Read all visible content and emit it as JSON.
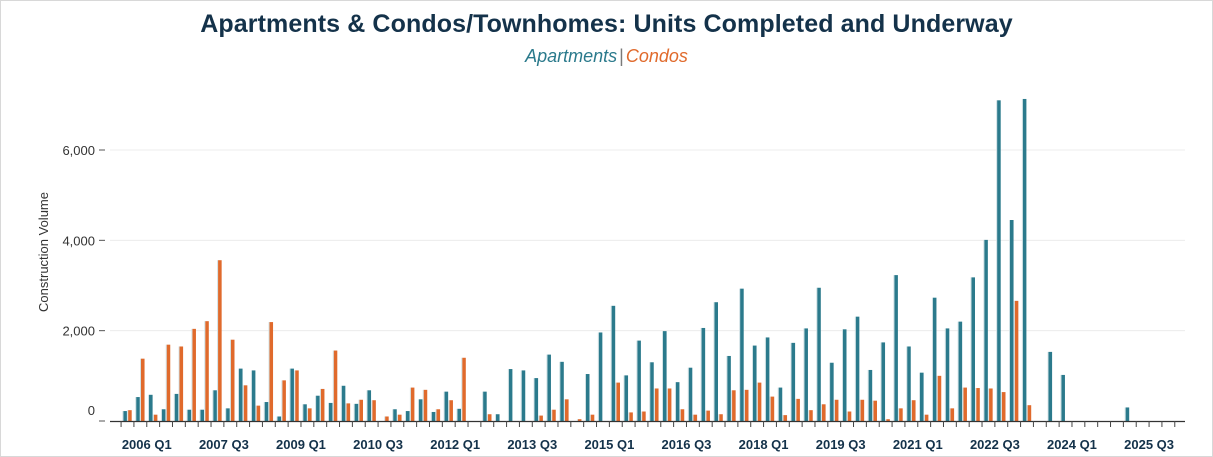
{
  "chart_data": {
    "type": "bar",
    "title": "Apartments & Condos/Townhomes: Units Completed and Underway",
    "ylabel": "Construction Volume",
    "xlabel": "",
    "ylim": [
      0,
      7200
    ],
    "yticks": [
      0,
      2000,
      4000,
      6000
    ],
    "ytick_labels": [
      "0",
      "2,000",
      "4,000",
      "6,000"
    ],
    "grid": true,
    "legend_position": "top-center",
    "colors": {
      "apartments": "#2b7a8c",
      "condos": "#e06a2c"
    },
    "quarter_start": "2006 Q1",
    "x_tick_labels": [
      {
        "label": "2006 Q1",
        "q": 2
      },
      {
        "label": "2007 Q3",
        "q": 8
      },
      {
        "label": "2009 Q1",
        "q": 14
      },
      {
        "label": "2010 Q3",
        "q": 20
      },
      {
        "label": "2012 Q1",
        "q": 26
      },
      {
        "label": "2013 Q3",
        "q": 32
      },
      {
        "label": "2015 Q1",
        "q": 38
      },
      {
        "label": "2016 Q3",
        "q": 44
      },
      {
        "label": "2018 Q1",
        "q": 50
      },
      {
        "label": "2019 Q3",
        "q": 56
      },
      {
        "label": "2021 Q1",
        "q": 62
      },
      {
        "label": "2022 Q3",
        "q": 68
      },
      {
        "label": "2024 Q1",
        "q": 74
      },
      {
        "label": "2025 Q3",
        "q": 80
      }
    ],
    "series": [
      {
        "name": "Apartments",
        "values": [
          220,
          530,
          580,
          260,
          600,
          250,
          250,
          680,
          280,
          1160,
          1120,
          420,
          100,
          1160,
          370,
          560,
          400,
          780,
          380,
          680,
          0,
          260,
          220,
          480,
          200,
          650,
          270,
          0,
          650,
          150,
          1150,
          1120,
          950,
          1470,
          1310,
          0,
          1040,
          1960,
          2550,
          1010,
          1780,
          1300,
          1990,
          860,
          1180,
          2060,
          2630,
          1440,
          2930,
          1670,
          1850,
          740,
          1730,
          2050,
          2950,
          1290,
          2030,
          2310,
          1130,
          1740,
          3230,
          1650,
          1070,
          2730,
          2050,
          2200,
          3180,
          4010,
          7100,
          4450,
          7130,
          0,
          1530,
          1020,
          0,
          0,
          0,
          0,
          300,
          0,
          0,
          0
        ]
      },
      {
        "name": "Condos",
        "values": [
          240,
          1380,
          140,
          1690,
          1650,
          2040,
          2210,
          3560,
          1800,
          790,
          340,
          2190,
          900,
          1120,
          280,
          710,
          1560,
          390,
          470,
          460,
          100,
          140,
          740,
          690,
          260,
          460,
          1400,
          0,
          150,
          0,
          0,
          0,
          120,
          250,
          480,
          40,
          140,
          0,
          850,
          190,
          210,
          720,
          720,
          260,
          140,
          230,
          150,
          680,
          690,
          850,
          540,
          130,
          490,
          240,
          370,
          470,
          210,
          470,
          450,
          40,
          280,
          460,
          140,
          1000,
          280,
          740,
          730,
          720,
          640,
          2660,
          350,
          0,
          0,
          0,
          0,
          0,
          0,
          0,
          0,
          0,
          0,
          0
        ]
      }
    ]
  }
}
